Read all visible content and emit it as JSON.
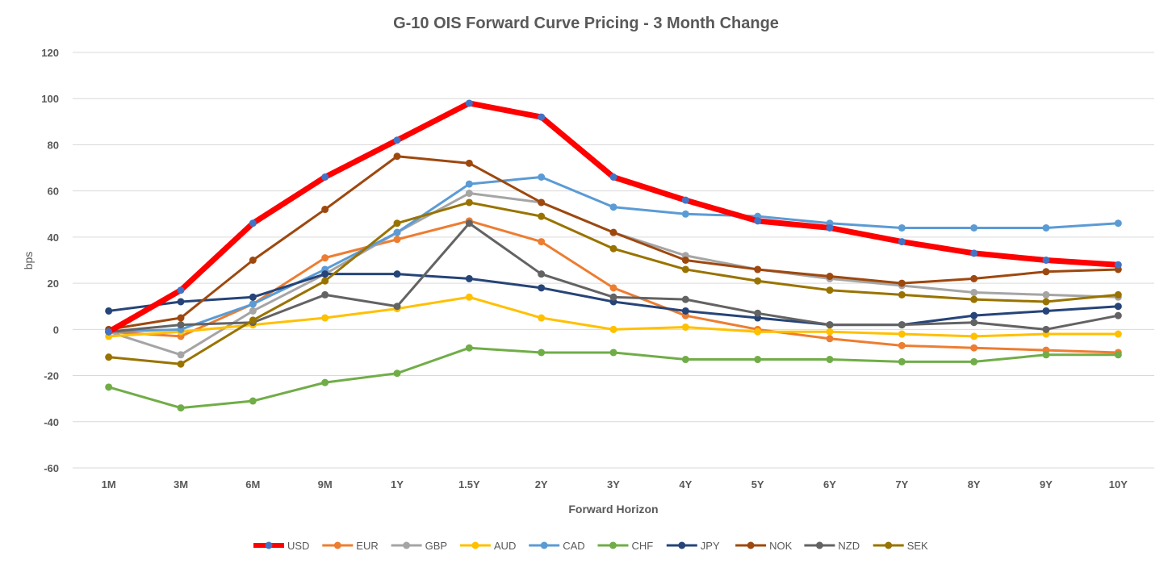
{
  "chart_data": {
    "type": "line",
    "title": "G-10 OIS Forward Curve Pricing - 3 Month Change",
    "xlabel": "Forward Horizon",
    "ylabel": "bps",
    "ylim": [
      -60,
      120
    ],
    "yticks": [
      -60,
      -40,
      -20,
      0,
      20,
      40,
      60,
      80,
      100,
      120
    ],
    "grid": true,
    "legend_position": "bottom",
    "categories": [
      "1M",
      "3M",
      "6M",
      "9M",
      "1Y",
      "1.5Y",
      "2Y",
      "3Y",
      "4Y",
      "5Y",
      "6Y",
      "7Y",
      "8Y",
      "9Y",
      "10Y"
    ],
    "series": [
      {
        "name": "USD",
        "color": "#FF0000",
        "marker_color": "#4472C4",
        "values": [
          -1,
          17,
          46,
          66,
          82,
          98,
          92,
          66,
          56,
          47,
          44,
          38,
          33,
          30,
          28
        ]
      },
      {
        "name": "EUR",
        "color": "#ED7D31",
        "values": [
          -1,
          -3,
          11,
          31,
          39,
          47,
          38,
          18,
          6,
          0,
          -4,
          -7,
          -8,
          -9,
          -10
        ]
      },
      {
        "name": "GBP",
        "color": "#A5A5A5",
        "values": [
          -1,
          -11,
          8,
          24,
          42,
          59,
          55,
          42,
          32,
          26,
          22,
          19,
          16,
          15,
          14
        ]
      },
      {
        "name": "AUD",
        "color": "#FFC000",
        "values": [
          -3,
          -1,
          2,
          5,
          9,
          14,
          5,
          0,
          1,
          -1,
          -1,
          -2,
          -3,
          -2,
          -2
        ]
      },
      {
        "name": "CAD",
        "color": "#5B9BD5",
        "values": [
          -1,
          0,
          11,
          26,
          42,
          63,
          66,
          53,
          50,
          49,
          46,
          44,
          44,
          44,
          46
        ]
      },
      {
        "name": "CHF",
        "color": "#70AD47",
        "values": [
          -25,
          -34,
          -31,
          -23,
          -19,
          -8,
          -10,
          -10,
          -13,
          -13,
          -13,
          -14,
          -14,
          -11,
          -11
        ]
      },
      {
        "name": "JPY",
        "color": "#264478",
        "values": [
          8,
          12,
          14,
          24,
          24,
          22,
          18,
          12,
          8,
          5,
          2,
          2,
          6,
          8,
          10
        ]
      },
      {
        "name": "NOK",
        "color": "#9E480E",
        "values": [
          0,
          5,
          30,
          52,
          75,
          72,
          55,
          42,
          30,
          26,
          23,
          20,
          22,
          25,
          26
        ]
      },
      {
        "name": "NZD",
        "color": "#636363",
        "values": [
          -1,
          2,
          3,
          15,
          10,
          46,
          24,
          14,
          13,
          7,
          2,
          2,
          3,
          0,
          6
        ]
      },
      {
        "name": "SEK",
        "color": "#997300",
        "values": [
          -12,
          -15,
          4,
          21,
          46,
          55,
          49,
          35,
          26,
          21,
          17,
          15,
          13,
          12,
          15
        ]
      }
    ]
  }
}
